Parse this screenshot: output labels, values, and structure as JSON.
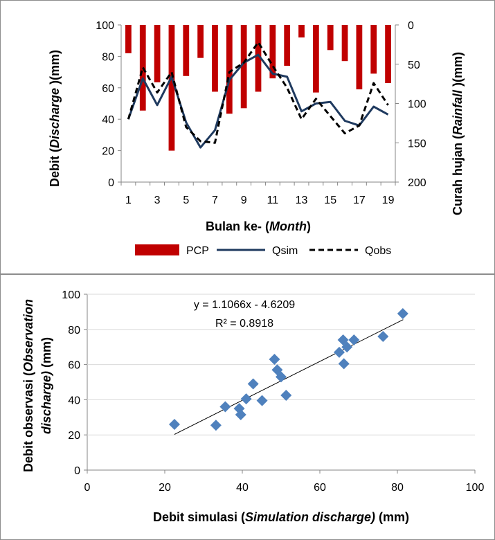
{
  "chart_data": [
    {
      "type": "bar+line",
      "xlabel_prefix": "Bulan ke- (",
      "xlabel_em": "Month",
      "xlabel_suffix": ")",
      "ylabel_prefix": "Debit (",
      "ylabel_em": "Discharge",
      "ylabel_suffix": " )(mm)",
      "y2label_prefix": "Curah hujan (",
      "y2label_em": "Rainfall",
      "y2label_suffix": " )(mm)",
      "ylim": [
        0,
        100
      ],
      "yticks": [
        "0",
        "20",
        "40",
        "60",
        "80",
        "100"
      ],
      "y2lim": [
        0,
        200
      ],
      "y2_inverted": true,
      "y2ticks": [
        "0",
        "50",
        "100",
        "150",
        "200"
      ],
      "x": [
        1,
        2,
        3,
        4,
        5,
        6,
        7,
        8,
        9,
        10,
        11,
        12,
        13,
        14,
        15,
        16,
        17,
        18,
        19
      ],
      "xticks": [
        "1",
        "3",
        "5",
        "7",
        "9",
        "11",
        "13",
        "15",
        "17",
        "19"
      ],
      "legend": [
        {
          "name": "PCP",
          "kind": "bar",
          "color": "#c00000"
        },
        {
          "name": "Qsim",
          "kind": "line",
          "color": "#1f3a5f"
        },
        {
          "name": "Qobs",
          "kind": "dashed",
          "color": "#000000"
        }
      ],
      "series": [
        {
          "name": "PCP",
          "axis": "y2",
          "values": [
            36,
            109,
            73,
            160,
            65,
            42,
            85,
            113,
            106,
            85,
            68,
            52,
            16,
            86,
            32,
            46,
            82,
            62,
            74
          ]
        },
        {
          "name": "Qsim",
          "axis": "y",
          "values": [
            40,
            66,
            49,
            67,
            38,
            22,
            33,
            65,
            76,
            81,
            69,
            67,
            45,
            50,
            51,
            39,
            36,
            48,
            43
          ]
        },
        {
          "name": "Qobs",
          "axis": "y",
          "values": [
            40,
            73,
            57,
            70,
            35,
            26,
            25,
            70,
            76,
            89,
            74,
            60,
            40,
            53,
            42,
            31,
            36,
            63,
            49
          ]
        }
      ]
    },
    {
      "type": "scatter",
      "xlabel_prefix": "Debit simulasi (",
      "xlabel_em": "Simulation discharge)",
      "xlabel_suffix": " (mm)",
      "ylabel_line1_prefix": "Debit observasi (",
      "ylabel_line1_em": "Observation",
      "ylabel_line2_em": "discharge)",
      "ylabel_line2_suffix": " (mm)",
      "xlim": [
        0,
        100
      ],
      "ylim": [
        0,
        100
      ],
      "xticks": [
        "0",
        "20",
        "40",
        "60",
        "80",
        "100"
      ],
      "yticks": [
        "0",
        "20",
        "40",
        "60",
        "80",
        "100"
      ],
      "equation": "y = 1.1066x - 4.6209",
      "r2": "R² = 0.8918",
      "trend": {
        "slope": 1.1066,
        "intercept": -4.6209,
        "x_from": 22.5,
        "x_to": 81.5
      },
      "marker_color": "#4f81bd",
      "points": [
        [
          22.5,
          26
        ],
        [
          33.2,
          25.5
        ],
        [
          35.6,
          36
        ],
        [
          39.2,
          35
        ],
        [
          39.6,
          31.5
        ],
        [
          41,
          40.5
        ],
        [
          42.8,
          49
        ],
        [
          45.1,
          39.5
        ],
        [
          48.3,
          63
        ],
        [
          49,
          57
        ],
        [
          50,
          53
        ],
        [
          51.3,
          42.5
        ],
        [
          65,
          67
        ],
        [
          66,
          74
        ],
        [
          66.2,
          60.5
        ],
        [
          67,
          70
        ],
        [
          68.8,
          74
        ],
        [
          76.3,
          76
        ],
        [
          81.4,
          89
        ]
      ]
    }
  ]
}
